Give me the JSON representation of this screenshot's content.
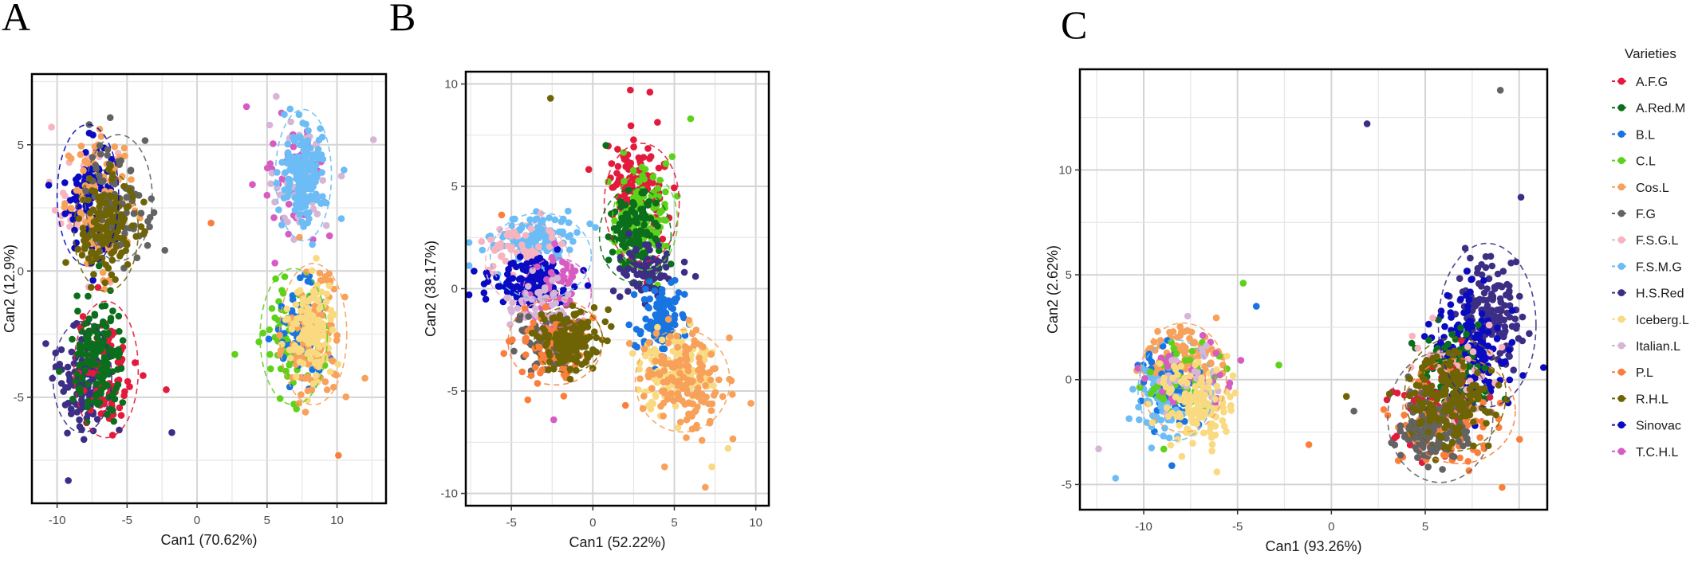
{
  "legend": {
    "title": "Varieties",
    "items": [
      {
        "label": "A.F.G",
        "color": "#e31a3c"
      },
      {
        "label": "A.Red.M",
        "color": "#0b6e1c"
      },
      {
        "label": "B.L",
        "color": "#1874e0"
      },
      {
        "label": "C.L",
        "color": "#5ed11a"
      },
      {
        "label": "Cos.L",
        "color": "#f7a15a"
      },
      {
        "label": "F.G",
        "color": "#636363"
      },
      {
        "label": "F.S.G.L",
        "color": "#f7b3c0"
      },
      {
        "label": "F.S.M.G",
        "color": "#6cbcf5"
      },
      {
        "label": "H.S.Red",
        "color": "#3d2e85"
      },
      {
        "label": "Iceberg.L",
        "color": "#f9da80"
      },
      {
        "label": "Italian.L",
        "color": "#d6b5d6"
      },
      {
        "label": "P.L",
        "color": "#fa7f3c"
      },
      {
        "label": "R.H.L",
        "color": "#6e6406"
      },
      {
        "label": "Sinovac",
        "color": "#0a0ac2"
      },
      {
        "label": "T.C.H.L",
        "color": "#d65cc2"
      }
    ]
  },
  "chart_data": [
    {
      "type": "scatter",
      "panel": "A",
      "xlabel": "Can1 (70.62%)",
      "ylabel": "Can2 (12.9%)",
      "xlim": [
        -11.8,
        13.5
      ],
      "ylim": [
        -9.2,
        7.8
      ],
      "xticks": [
        -10,
        -5,
        0,
        5,
        10
      ],
      "yticks": [
        -5,
        0,
        5
      ],
      "grid": true,
      "legend_position": "right (shared)",
      "clusters": [
        {
          "variety": "F.S.G.L",
          "cx": -7.8,
          "cy": 2.8,
          "sx": 1.1,
          "sy": 1.2,
          "n": 60
        },
        {
          "variety": "Sinovac",
          "cx": -7.8,
          "cy": 3.0,
          "sx": 0.8,
          "sy": 1.1,
          "n": 90
        },
        {
          "variety": "Cos.L",
          "cx": -6.8,
          "cy": 2.6,
          "sx": 1.3,
          "sy": 1.3,
          "n": 90
        },
        {
          "variety": "F.G",
          "cx": -5.6,
          "cy": 2.8,
          "sx": 1.1,
          "sy": 1.1,
          "n": 90
        },
        {
          "variety": "R.H.L",
          "cx": -6.5,
          "cy": 1.6,
          "sx": 1.0,
          "sy": 1.0,
          "n": 140
        },
        {
          "variety": "H.S.Red",
          "cx": -8.2,
          "cy": -4.2,
          "sx": 0.9,
          "sy": 1.0,
          "n": 120
        },
        {
          "variety": "A.F.G",
          "cx": -6.5,
          "cy": -4.0,
          "sx": 1.0,
          "sy": 1.2,
          "n": 90
        },
        {
          "variety": "A.Red.M",
          "cx": -7.0,
          "cy": -3.6,
          "sx": 0.9,
          "sy": 1.2,
          "n": 140
        },
        {
          "variety": "T.C.H.L",
          "cx": 7.0,
          "cy": 3.6,
          "sx": 1.1,
          "sy": 1.1,
          "n": 60
        },
        {
          "variety": "Italian.L",
          "cx": 7.4,
          "cy": 3.7,
          "sx": 1.1,
          "sy": 1.1,
          "n": 60
        },
        {
          "variety": "F.S.M.G",
          "cx": 7.6,
          "cy": 3.8,
          "sx": 0.8,
          "sy": 1.0,
          "n": 150
        },
        {
          "variety": "C.L",
          "cx": 6.8,
          "cy": -2.6,
          "sx": 1.1,
          "sy": 1.2,
          "n": 70
        },
        {
          "variety": "B.L",
          "cx": 7.4,
          "cy": -2.4,
          "sx": 1.0,
          "sy": 1.0,
          "n": 70
        },
        {
          "variety": "Cos.L",
          "cx": 8.4,
          "cy": -2.6,
          "sx": 1.0,
          "sy": 1.2,
          "n": 110
        },
        {
          "variety": "Iceberg.L",
          "cx": 8.2,
          "cy": -2.2,
          "sx": 0.8,
          "sy": 0.9,
          "n": 120
        }
      ],
      "ellipses": [
        {
          "variety": "Sinovac",
          "cx": -7.8,
          "cy": 3.0,
          "rx": 2.2,
          "ry": 2.8
        },
        {
          "variety": "F.G",
          "cx": -5.6,
          "cy": 2.9,
          "rx": 2.4,
          "ry": 2.5
        },
        {
          "variety": "R.H.L",
          "cx": -6.5,
          "cy": 1.6,
          "rx": 2.3,
          "ry": 2.4
        },
        {
          "variety": "H.S.Red",
          "cx": -8.2,
          "cy": -4.2,
          "rx": 2.1,
          "ry": 2.2
        },
        {
          "variety": "A.F.G",
          "cx": -6.5,
          "cy": -3.9,
          "rx": 2.3,
          "ry": 2.7
        },
        {
          "variety": "F.S.M.G",
          "cx": 7.6,
          "cy": 3.8,
          "rx": 2.0,
          "ry": 2.6
        },
        {
          "variety": "Cos.L",
          "cx": 8.3,
          "cy": -2.5,
          "rx": 2.4,
          "ry": 2.8
        },
        {
          "variety": "C.L",
          "cx": 6.9,
          "cy": -2.6,
          "rx": 2.4,
          "ry": 2.7
        }
      ],
      "outliers": [
        {
          "variety": "P.L",
          "x": 1.0,
          "y": 1.9
        },
        {
          "variety": "Italian.L",
          "x": 12.6,
          "y": 5.2
        },
        {
          "variety": "F.S.M.G",
          "x": 10.5,
          "y": 4.0
        },
        {
          "variety": "H.S.Red",
          "x": -9.2,
          "y": -8.3
        },
        {
          "variety": "H.S.Red",
          "x": -1.8,
          "y": -6.4
        },
        {
          "variety": "A.F.G",
          "x": -2.2,
          "y": -4.7
        },
        {
          "variety": "C.L",
          "x": 2.7,
          "y": -3.3
        },
        {
          "variety": "P.L",
          "x": 10.1,
          "y": -7.3
        },
        {
          "variety": "F.S.G.L",
          "x": -10.4,
          "y": 5.7
        }
      ]
    },
    {
      "type": "scatter",
      "panel": "B",
      "xlabel": "Can1 (52.22%)",
      "ylabel": "Can2 (38.17%)",
      "xlim": [
        -7.8,
        10.8
      ],
      "ylim": [
        -10.6,
        10.6
      ],
      "xticks": [
        -5,
        0,
        5,
        10
      ],
      "yticks": [
        -10,
        -5,
        0,
        5,
        10
      ],
      "grid": true,
      "legend_position": "right (shared)",
      "clusters": [
        {
          "variety": "F.S.M.G",
          "cx": -3.5,
          "cy": 2.5,
          "sx": 1.3,
          "sy": 0.6,
          "n": 120
        },
        {
          "variety": "F.S.G.L",
          "cx": -4.4,
          "cy": 1.7,
          "sx": 1.1,
          "sy": 0.8,
          "n": 60
        },
        {
          "variety": "Sinovac",
          "cx": -3.8,
          "cy": 0.3,
          "sx": 1.3,
          "sy": 0.6,
          "n": 150
        },
        {
          "variety": "T.C.H.L",
          "cx": -2.2,
          "cy": 0.2,
          "sx": 0.8,
          "sy": 0.8,
          "n": 40
        },
        {
          "variety": "Italian.L",
          "cx": -3.2,
          "cy": -1.0,
          "sx": 1.1,
          "sy": 0.6,
          "n": 60
        },
        {
          "variety": "F.G",
          "cx": -3.0,
          "cy": -2.6,
          "sx": 1.0,
          "sy": 0.7,
          "n": 80
        },
        {
          "variety": "P.L",
          "cx": -2.6,
          "cy": -2.9,
          "sx": 1.2,
          "sy": 0.8,
          "n": 90
        },
        {
          "variety": "R.H.L",
          "cx": -1.5,
          "cy": -2.5,
          "sx": 0.9,
          "sy": 0.7,
          "n": 160
        },
        {
          "variety": "A.F.G",
          "cx": 2.7,
          "cy": 4.7,
          "sx": 0.9,
          "sy": 1.2,
          "n": 130
        },
        {
          "variety": "C.L",
          "cx": 3.1,
          "cy": 3.4,
          "sx": 0.9,
          "sy": 1.2,
          "n": 120
        },
        {
          "variety": "A.Red.M",
          "cx": 2.7,
          "cy": 2.6,
          "sx": 0.9,
          "sy": 1.1,
          "n": 120
        },
        {
          "variety": "H.S.Red",
          "cx": 3.4,
          "cy": 0.8,
          "sx": 0.8,
          "sy": 0.7,
          "n": 80
        },
        {
          "variety": "B.L",
          "cx": 4.1,
          "cy": -1.6,
          "sx": 0.7,
          "sy": 0.9,
          "n": 120
        },
        {
          "variety": "Iceberg.L",
          "cx": 4.9,
          "cy": -4.0,
          "sx": 1.1,
          "sy": 0.9,
          "n": 130
        },
        {
          "variety": "Cos.L",
          "cx": 5.6,
          "cy": -4.5,
          "sx": 1.3,
          "sy": 1.2,
          "n": 150
        }
      ],
      "ellipses": [
        {
          "variety": "F.S.M.G",
          "cx": -3.2,
          "cy": 1.6,
          "rx": 3.1,
          "ry": 2.1
        },
        {
          "variety": "F.S.G.L",
          "cx": -4.0,
          "cy": 1.2,
          "rx": 2.6,
          "ry": 2.0
        },
        {
          "variety": "T.C.H.L",
          "cx": -2.2,
          "cy": -0.2,
          "rx": 2.1,
          "ry": 1.7
        },
        {
          "variety": "P.L",
          "cx": -2.3,
          "cy": -2.6,
          "rx": 2.9,
          "ry": 2.1
        },
        {
          "variety": "R.H.L",
          "cx": -1.5,
          "cy": -2.5,
          "rx": 2.1,
          "ry": 1.6
        },
        {
          "variety": "A.F.G",
          "cx": 3.0,
          "cy": 4.2,
          "rx": 2.3,
          "ry": 2.9
        },
        {
          "variety": "C.L",
          "cx": 3.2,
          "cy": 3.3,
          "rx": 2.0,
          "ry": 2.4
        },
        {
          "variety": "A.Red.M",
          "cx": 2.6,
          "cy": 2.6,
          "rx": 2.2,
          "ry": 2.3
        },
        {
          "variety": "Cos.L",
          "cx": 5.5,
          "cy": -4.5,
          "rx": 2.9,
          "ry": 2.5
        }
      ],
      "outliers": [
        {
          "variety": "R.H.L",
          "x": -2.6,
          "y": 9.3
        },
        {
          "variety": "A.F.G",
          "x": 2.3,
          "y": 9.7
        },
        {
          "variety": "A.F.G",
          "x": 3.5,
          "y": 9.6
        },
        {
          "variety": "C.L",
          "x": 6.0,
          "y": 8.3
        },
        {
          "variety": "A.Red.M",
          "x": 0.8,
          "y": 7.0
        },
        {
          "variety": "H.S.Red",
          "x": 6.3,
          "y": 0.6
        },
        {
          "variety": "T.C.H.L",
          "x": -2.4,
          "y": -6.4
        },
        {
          "variety": "P.L",
          "x": 2.0,
          "y": -5.7
        },
        {
          "variety": "Cos.L",
          "x": 4.4,
          "y": -8.7
        },
        {
          "variety": "Cos.L",
          "x": 6.9,
          "y": -9.7
        },
        {
          "variety": "Iceberg.L",
          "x": 8.3,
          "y": -7.8
        },
        {
          "variety": "Iceberg.L",
          "x": 7.3,
          "y": -8.7
        },
        {
          "variety": "Cos.L",
          "x": 9.7,
          "y": -5.6
        },
        {
          "variety": "P.L",
          "x": -5.6,
          "y": 3.6
        }
      ]
    },
    {
      "type": "scatter",
      "panel": "C",
      "xlabel": "Can1 (93.26%)",
      "ylabel": "Can2 (2.62%)",
      "xlim": [
        -13.4,
        11.5
      ],
      "ylim": [
        -6.2,
        14.8
      ],
      "xticks": [
        -10,
        -5,
        0,
        5
      ],
      "yticks": [
        -5,
        0,
        5,
        10
      ],
      "grid": true,
      "legend_position": "right",
      "clusters": [
        {
          "variety": "Cos.L",
          "cx": -8.0,
          "cy": 0.9,
          "sx": 1.0,
          "sy": 0.8,
          "n": 130
        },
        {
          "variety": "B.L",
          "cx": -8.6,
          "cy": -0.5,
          "sx": 0.8,
          "sy": 0.9,
          "n": 70
        },
        {
          "variety": "F.S.M.G",
          "cx": -9.2,
          "cy": -1.2,
          "sx": 0.6,
          "sy": 0.9,
          "n": 60
        },
        {
          "variety": "C.L",
          "cx": -7.8,
          "cy": 0.0,
          "sx": 1.1,
          "sy": 1.0,
          "n": 50
        },
        {
          "variety": "T.C.H.L",
          "cx": -7.5,
          "cy": 0.3,
          "sx": 1.2,
          "sy": 0.9,
          "n": 30
        },
        {
          "variety": "Italian.L",
          "cx": -7.6,
          "cy": -0.2,
          "sx": 1.1,
          "sy": 1.0,
          "n": 30
        },
        {
          "variety": "Iceberg.L",
          "cx": -7.2,
          "cy": -1.2,
          "sx": 0.9,
          "sy": 1.0,
          "n": 130
        },
        {
          "variety": "H.S.Red",
          "cx": 8.3,
          "cy": 3.2,
          "sx": 0.9,
          "sy": 1.2,
          "n": 160
        },
        {
          "variety": "Sinovac",
          "cx": 7.4,
          "cy": 1.2,
          "sx": 1.0,
          "sy": 1.5,
          "n": 150
        },
        {
          "variety": "A.Red.M",
          "cx": 6.6,
          "cy": 0.2,
          "sx": 1.1,
          "sy": 1.3,
          "n": 70
        },
        {
          "variety": "F.S.G.L",
          "cx": 6.6,
          "cy": 0.5,
          "sx": 1.3,
          "sy": 1.5,
          "n": 40
        },
        {
          "variety": "A.F.G",
          "cx": 5.4,
          "cy": -1.4,
          "sx": 1.1,
          "sy": 1.0,
          "n": 50
        },
        {
          "variety": "P.L",
          "cx": 6.0,
          "cy": -2.0,
          "sx": 1.4,
          "sy": 1.0,
          "n": 100
        },
        {
          "variety": "F.G",
          "cx": 5.3,
          "cy": -2.4,
          "sx": 0.9,
          "sy": 0.8,
          "n": 140
        },
        {
          "variety": "R.H.L",
          "cx": 6.4,
          "cy": -0.9,
          "sx": 1.1,
          "sy": 1.1,
          "n": 170
        }
      ],
      "ellipses": [
        {
          "variety": "Cos.L",
          "cx": -7.9,
          "cy": 0.1,
          "rx": 2.3,
          "ry": 2.6
        },
        {
          "variety": "F.S.M.G",
          "cx": -8.3,
          "cy": -0.5,
          "rx": 2.0,
          "ry": 2.4
        },
        {
          "variety": "H.S.Red",
          "cx": 8.3,
          "cy": 2.6,
          "rx": 2.6,
          "ry": 3.9
        },
        {
          "variety": "F.G",
          "cx": 5.8,
          "cy": -1.8,
          "rx": 2.8,
          "ry": 3.1
        },
        {
          "variety": "P.L",
          "cx": 6.8,
          "cy": -1.5,
          "rx": 3.0,
          "ry": 2.5
        },
        {
          "variety": "R.H.L",
          "cx": 6.6,
          "cy": -0.7,
          "rx": 2.7,
          "ry": 2.7
        }
      ],
      "outliers": [
        {
          "variety": "H.S.Red",
          "x": 1.9,
          "y": 12.2
        },
        {
          "variety": "F.G",
          "x": 9.0,
          "y": 13.8
        },
        {
          "variety": "H.S.Red",
          "x": 10.1,
          "y": 8.7
        },
        {
          "variety": "Italian.L",
          "x": -12.4,
          "y": -3.3
        },
        {
          "variety": "F.S.M.G",
          "x": -11.5,
          "y": -4.7
        },
        {
          "variety": "Iceberg.L",
          "x": -6.1,
          "y": -4.4
        },
        {
          "variety": "B.L",
          "x": -8.5,
          "y": -4.1
        },
        {
          "variety": "P.L",
          "x": -1.2,
          "y": -3.1
        },
        {
          "variety": "C.L",
          "x": -4.7,
          "y": 4.6
        },
        {
          "variety": "B.L",
          "x": -4.0,
          "y": 3.5
        },
        {
          "variety": "C.L",
          "x": -2.8,
          "y": 0.7
        },
        {
          "variety": "R.H.L",
          "x": 0.8,
          "y": -0.8
        },
        {
          "variety": "F.G",
          "x": 1.2,
          "y": -1.5
        }
      ]
    }
  ]
}
